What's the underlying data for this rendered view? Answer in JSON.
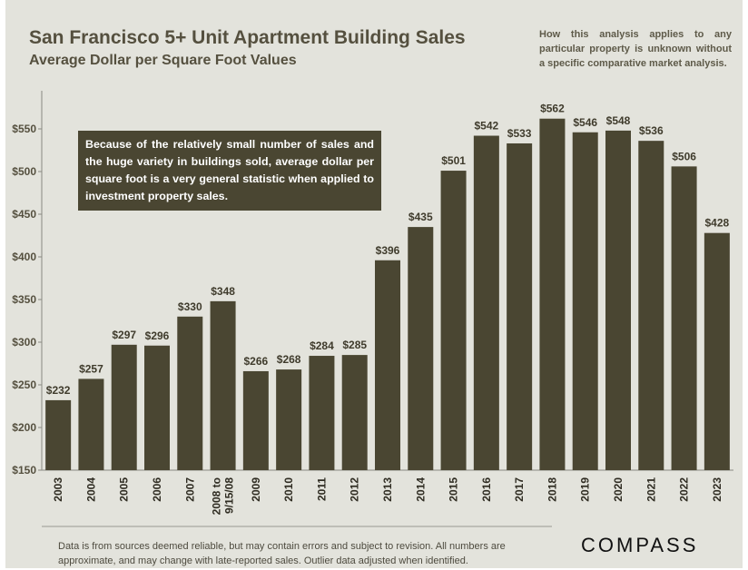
{
  "header": {
    "title": "San Francisco 5+ Unit Apartment Building Sales",
    "subtitle": "Average Dollar per Square Foot Values",
    "disclaimer": "How this analysis applies to any particular property is unknown without a specific comparative market analysis."
  },
  "note": "Because of the relatively small number of sales and the huge variety in buildings sold, average dollar per square foot is a very general statistic when applied to investment property sales.",
  "footer": {
    "line1": "Data is from sources deemed reliable, but may contain errors and subject to revision. All numbers are",
    "line2": "approximate, and may change with late-reported sales.  Outlier data adjusted when identified.",
    "logo": "COMPASS"
  },
  "colors": {
    "bar": "#4a4632",
    "background": "#e3e3dc",
    "text": "#55503f"
  },
  "chart_data": {
    "type": "bar",
    "title": "San Francisco 5+ Unit Apartment Building Sales",
    "subtitle": "Average Dollar per Square Foot Values",
    "xlabel": "",
    "ylabel": "",
    "categories": [
      "2003",
      "2004",
      "2005",
      "2006",
      "2007",
      "2008 to 9/15/08",
      "2009",
      "2010",
      "2011",
      "2012",
      "2013",
      "2014",
      "2015",
      "2016",
      "2017",
      "2018",
      "2019",
      "2020",
      "2021",
      "2022",
      "2023"
    ],
    "values": [
      232,
      257,
      297,
      296,
      330,
      348,
      266,
      268,
      284,
      285,
      396,
      435,
      501,
      542,
      533,
      562,
      546,
      548,
      536,
      506,
      428
    ],
    "data_labels": [
      "$232",
      "$257",
      "$297",
      "$296",
      "$330",
      "$348",
      "$266",
      "$268",
      "$284",
      "$285",
      "$396",
      "$435",
      "$501",
      "$542",
      "$533",
      "$562",
      "$546",
      "$548",
      "$536",
      "$506",
      "$428"
    ],
    "yticks": [
      150,
      200,
      250,
      300,
      350,
      400,
      450,
      500,
      550
    ],
    "ytick_labels": [
      "$150",
      "$200",
      "$250",
      "$300",
      "$350",
      "$400",
      "$450",
      "$500",
      "$550"
    ],
    "ylim": [
      150,
      580
    ],
    "grid": false,
    "legend": "none"
  }
}
